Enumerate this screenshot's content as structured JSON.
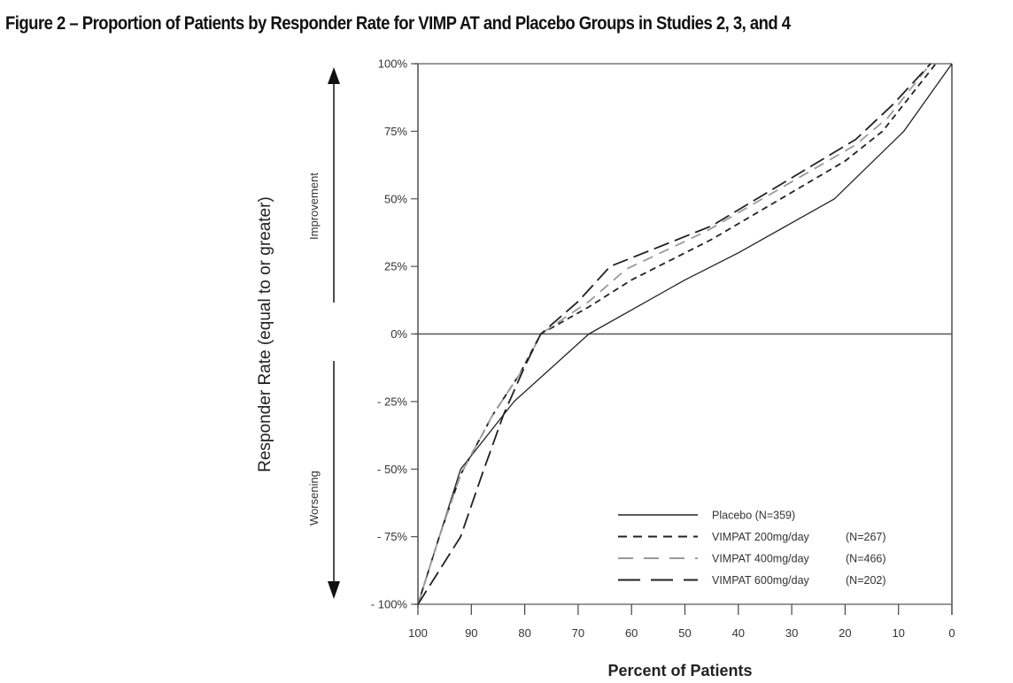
{
  "figure": {
    "title": "Figure 2 – Proportion of Patients by Responder Rate for VIMP AT and Placebo Groups in Studies 2, 3, and 4"
  },
  "chart_data": {
    "type": "line",
    "title": "Figure 2 – Proportion of Patients by Responder Rate for VIMP AT and Placebo Groups in Studies 2, 3, and 4",
    "xlabel": "Percent of Patients",
    "ylabel": "Responder Rate (equal to or greater)",
    "xlim": [
      100,
      0
    ],
    "ylim": [
      -100,
      100
    ],
    "x_reversed": true,
    "x_ticks": [
      100,
      90,
      80,
      70,
      60,
      50,
      40,
      30,
      20,
      10,
      0
    ],
    "x_tick_labels": [
      "100",
      "90",
      "80",
      "70",
      "60",
      "50",
      "40",
      "30",
      "20",
      "10",
      "0"
    ],
    "y_ticks": [
      100,
      75,
      50,
      25,
      0,
      -25,
      -50,
      -75,
      -100
    ],
    "y_tick_labels": [
      "100%",
      "75%",
      "50%",
      "25%",
      "0%",
      "- 25%",
      "- 50%",
      "- 75%",
      "- 100%"
    ],
    "grid": false,
    "zero_line": true,
    "annotations": {
      "up": "Improvement",
      "down": "Worsening"
    },
    "legend_position": "bottom-right",
    "series": [
      {
        "name": "Placebo",
        "n_label": "(N=359)",
        "style": "solid",
        "color": "#222222",
        "points": [
          [
            100,
            -100
          ],
          [
            92,
            -50
          ],
          [
            82,
            -25
          ],
          [
            68,
            0
          ],
          [
            50,
            20
          ],
          [
            40,
            30
          ],
          [
            22,
            50
          ],
          [
            9,
            75
          ],
          [
            0,
            100
          ]
        ]
      },
      {
        "name": "VIMPAT 200mg/day",
        "n_label": "(N=267)",
        "style": "short-dash",
        "color": "#222222",
        "points": [
          [
            100,
            -100
          ],
          [
            96,
            -75
          ],
          [
            92,
            -52
          ],
          [
            86,
            -30
          ],
          [
            81,
            -15
          ],
          [
            77,
            0
          ],
          [
            68,
            10
          ],
          [
            60,
            20
          ],
          [
            45,
            35
          ],
          [
            20,
            64
          ],
          [
            13,
            75
          ],
          [
            3,
            100
          ]
        ]
      },
      {
        "name": "VIMPAT 400mg/day",
        "n_label": "(N=466)",
        "style": "medium-dash-light",
        "color": "#9a9a9a",
        "points": [
          [
            100,
            -100
          ],
          [
            96,
            -75
          ],
          [
            92,
            -52
          ],
          [
            86,
            -30
          ],
          [
            80,
            -12
          ],
          [
            77,
            0
          ],
          [
            68,
            12
          ],
          [
            61,
            24
          ],
          [
            46,
            38
          ],
          [
            18,
            70
          ],
          [
            12,
            80
          ],
          [
            4,
            100
          ]
        ]
      },
      {
        "name": "VIMPAT 600mg/day",
        "n_label": "(N=202)",
        "style": "long-dash",
        "color": "#222222",
        "points": [
          [
            100,
            -100
          ],
          [
            92,
            -75
          ],
          [
            88,
            -52
          ],
          [
            84,
            -30
          ],
          [
            80,
            -12
          ],
          [
            77,
            0
          ],
          [
            70,
            12
          ],
          [
            64,
            25
          ],
          [
            45,
            40
          ],
          [
            18,
            72
          ],
          [
            11,
            85
          ],
          [
            4,
            100
          ]
        ]
      }
    ]
  }
}
